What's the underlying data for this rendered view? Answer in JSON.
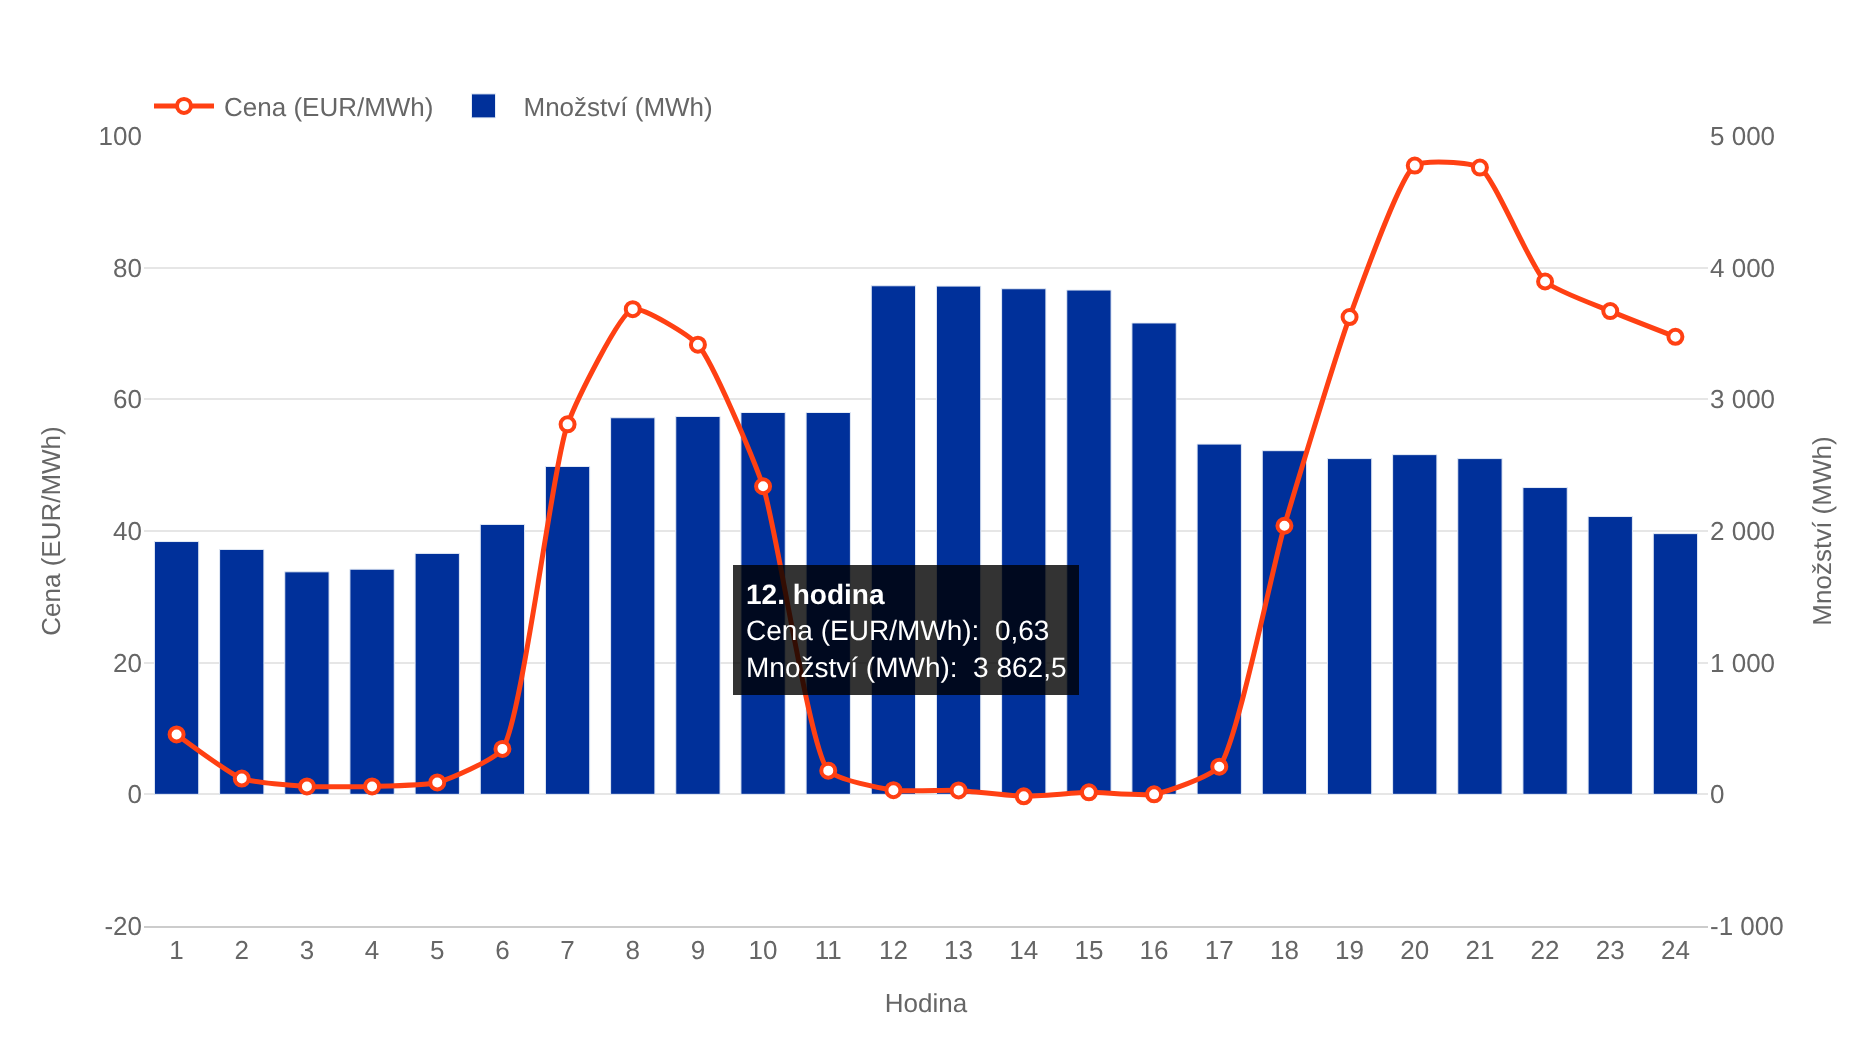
{
  "chart_data": {
    "type": "bar",
    "xlabel": "Hodina",
    "ylabel": "Cena (EUR/MWh)",
    "y2label": "Množství (MWh)",
    "x": [
      1,
      2,
      3,
      4,
      5,
      6,
      7,
      8,
      9,
      10,
      11,
      12,
      13,
      14,
      15,
      16,
      17,
      18,
      19,
      20,
      21,
      22,
      23,
      24
    ],
    "xlim": [
      0.5,
      24.5
    ],
    "xticks": [
      1,
      2,
      3,
      4,
      5,
      6,
      7,
      8,
      9,
      10,
      11,
      12,
      13,
      14,
      15,
      16,
      17,
      18,
      19,
      20,
      21,
      22,
      23,
      24
    ],
    "series": [
      {
        "name": "Cena (EUR/MWh)",
        "type": "line",
        "color": "#ff4013",
        "marker": "circle",
        "line_style": "solid",
        "values": [
          9.1,
          2.4,
          1.2,
          1.2,
          1.8,
          6.9,
          56.2,
          73.7,
          68.3,
          46.8,
          3.6,
          0.63,
          0.6,
          -0.3,
          0.3,
          0,
          4.2,
          40.8,
          72.5,
          95.5,
          95.2,
          77.9,
          73.4,
          69.5
        ]
      },
      {
        "name": "Množství (MWh)",
        "axis": "y2",
        "color": "#00309a",
        "values": [
          1920,
          1860,
          1690,
          1710,
          1830,
          2050,
          2490,
          2860,
          2870,
          2900,
          2900,
          3862.5,
          3860,
          3840,
          3830,
          3580,
          2660,
          2610,
          2550,
          2580,
          2550,
          2330,
          2110,
          1980
        ]
      }
    ],
    "ylim": [
      -20,
      100
    ],
    "yticks": [
      -20,
      0,
      20,
      40,
      60,
      80,
      100
    ],
    "y2lim": [
      -1000,
      5000
    ],
    "y2ticks": [
      {
        "value": -1000,
        "label": "-1 000"
      },
      0,
      {
        "value": 1000,
        "label": "1 000"
      },
      {
        "value": 2000,
        "label": "2 000"
      },
      {
        "value": 3000,
        "label": "3 000"
      },
      {
        "value": 4000,
        "label": "4 000"
      },
      {
        "value": 5000,
        "label": "5 000"
      }
    ],
    "grid": "y",
    "legend": "top left",
    "annotations": [
      "12. hodina",
      "Cena (EUR/MWh):  0,63",
      "Množství (MWh):  3 862,5"
    ]
  }
}
